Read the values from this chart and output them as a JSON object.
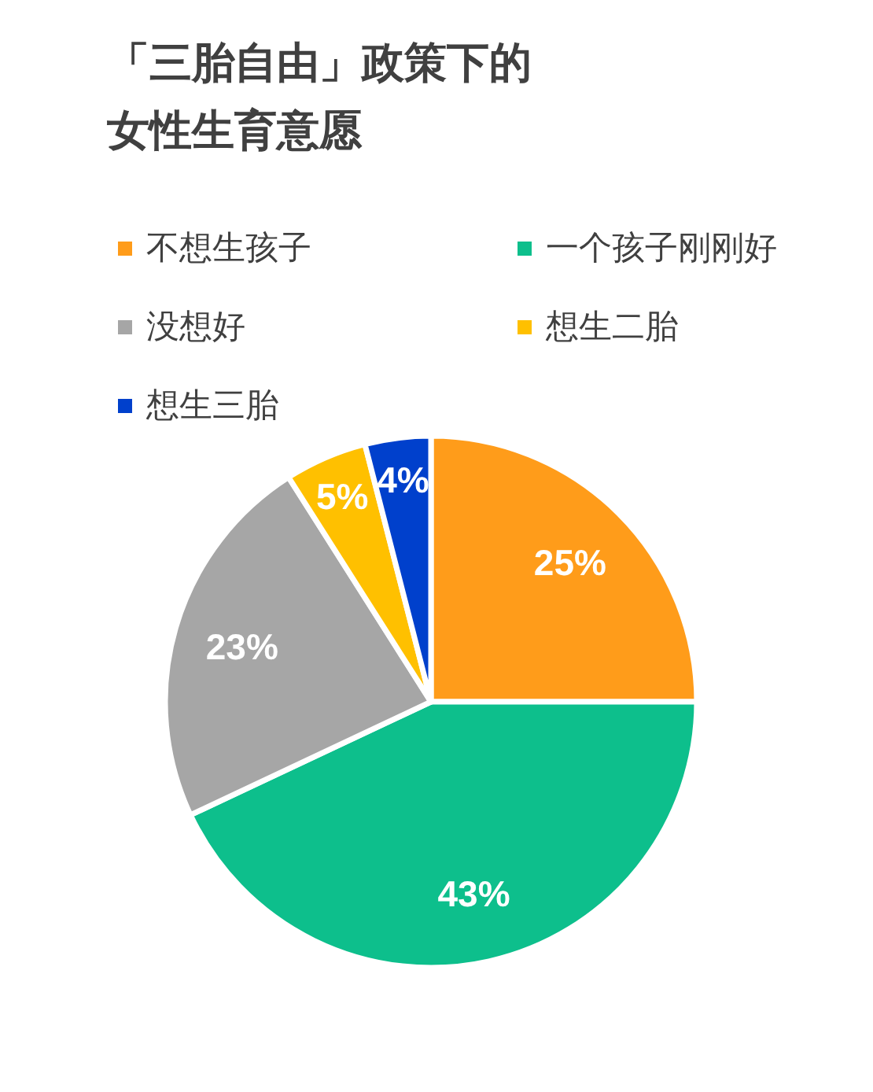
{
  "chart_data": {
    "type": "pie",
    "title": "「三胎自由」政策下的女性生育意愿",
    "categories": [
      "不想生孩子",
      "一个孩子刚刚好",
      "没想好",
      "想生二胎",
      "想生三胎"
    ],
    "values": [
      25,
      43,
      23,
      5,
      4
    ],
    "colors": [
      "#ff9c1a",
      "#0dbf8c",
      "#a6a6a6",
      "#ffc000",
      "#0040cc"
    ],
    "value_labels": [
      "25%",
      "43%",
      "23%",
      "5%",
      "4%"
    ],
    "legend": "top"
  }
}
